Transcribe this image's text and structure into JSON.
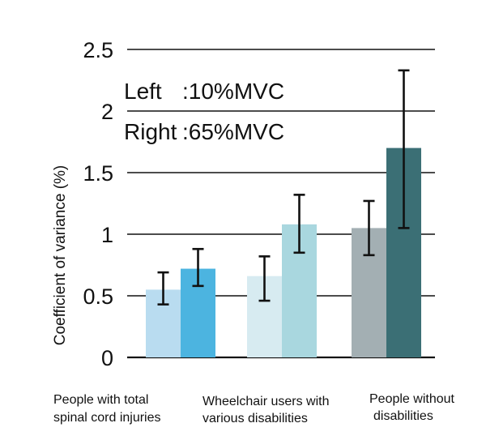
{
  "chart_data": {
    "type": "bar",
    "title": "",
    "xlabel": "",
    "ylabel": "Coefficient of variance (%)",
    "ylim": [
      0,
      2.5
    ],
    "yticks": [
      0,
      0.5,
      1,
      1.5,
      2,
      2.5
    ],
    "ytick_labels": [
      "0",
      "0.5",
      "1",
      "1.5",
      "2",
      "2.5"
    ],
    "grid": "horizontal",
    "annotations": [
      {
        "label": "Left",
        "value": ":10%MVC"
      },
      {
        "label": "Right",
        "value": ":65%MVC"
      }
    ],
    "categories": [
      [
        "People with total",
        "spinal cord injuries"
      ],
      [
        "Wheelchair users with",
        "various disabilities"
      ],
      [
        "People without",
        "disabilities"
      ]
    ],
    "series": [
      {
        "values": [
          0.55,
          0.66,
          1.05
        ],
        "error_low": [
          0.43,
          0.46,
          0.83
        ],
        "error_high": [
          0.69,
          0.82,
          1.27
        ],
        "colors": [
          "#b9dcf0",
          "#d7ebf1",
          "#a3afb3"
        ]
      },
      {
        "values": [
          0.72,
          1.08,
          1.7
        ],
        "error_low": [
          0.58,
          0.85,
          1.05
        ],
        "error_high": [
          0.88,
          1.32,
          2.33
        ],
        "colors": [
          "#4cb4e0",
          "#a9d7df",
          "#3b6f75"
        ]
      }
    ]
  }
}
